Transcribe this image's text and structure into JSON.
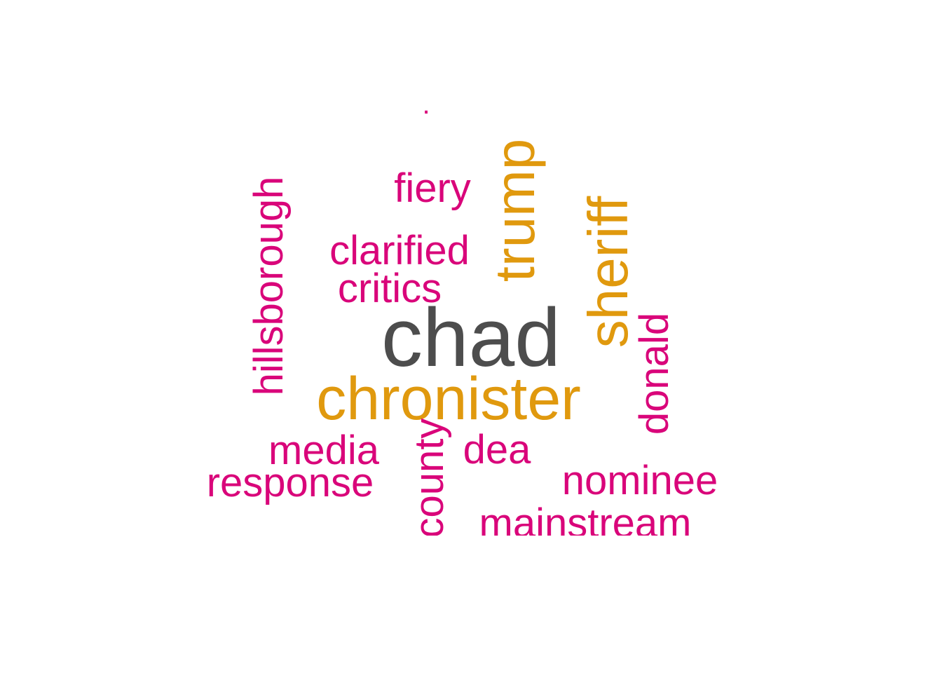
{
  "word_cloud": {
    "colors": {
      "primary": "#4d4d4d",
      "secondary": "#e0990e",
      "tertiary": "#d9057a"
    },
    "words": [
      {
        "text": "chad",
        "color_group": "primary"
      },
      {
        "text": "chronister",
        "color_group": "secondary"
      },
      {
        "text": "sheriff",
        "color_group": "secondary"
      },
      {
        "text": "trump",
        "color_group": "secondary"
      },
      {
        "text": "hillsborough",
        "color_group": "tertiary"
      },
      {
        "text": "fiery",
        "color_group": "tertiary"
      },
      {
        "text": "clarified",
        "color_group": "tertiary"
      },
      {
        "text": "critics",
        "color_group": "tertiary"
      },
      {
        "text": "donald",
        "color_group": "tertiary"
      },
      {
        "text": "media",
        "color_group": "tertiary"
      },
      {
        "text": "response",
        "color_group": "tertiary"
      },
      {
        "text": "county",
        "color_group": "tertiary"
      },
      {
        "text": "dea",
        "color_group": "tertiary"
      },
      {
        "text": "nominee",
        "color_group": "tertiary"
      },
      {
        "text": "mainstream",
        "color_group": "tertiary"
      },
      {
        "text": ".",
        "color_group": "tertiary"
      }
    ]
  }
}
